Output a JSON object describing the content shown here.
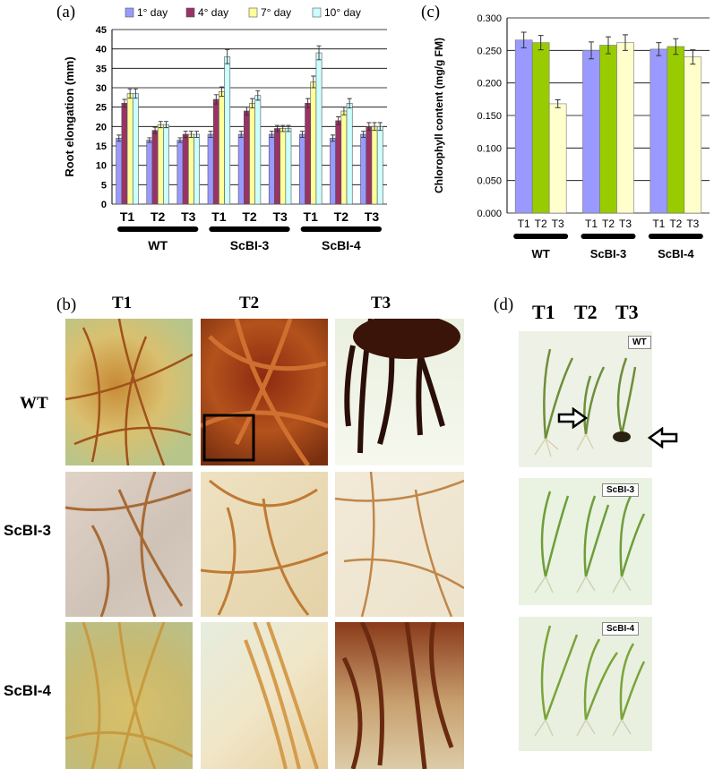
{
  "panels": {
    "a": "(a)",
    "b": "(b)",
    "c": "(c)",
    "d": "(d)"
  },
  "colors": {
    "day1": "#9999ff",
    "day4": "#993366",
    "day7": "#ffff99",
    "day10": "#ccffff",
    "c_T1": "#9999ff",
    "c_T2": "#99cc00",
    "c_T3": "#ffffcc"
  },
  "chart_data": [
    {
      "type": "bar",
      "panel": "a",
      "ylabel": "Root elongation (mm)",
      "ylim": [
        0,
        45
      ],
      "yticks": [
        "0",
        "5",
        "10",
        "15",
        "20",
        "25",
        "30",
        "35",
        "40",
        "45"
      ],
      "grid": true,
      "legend_position": "top",
      "categories": [
        "T1",
        "T2",
        "T3",
        "T1",
        "T2",
        "T3",
        "T1",
        "T2",
        "T3"
      ],
      "groups": [
        "WT",
        "ScBI-3",
        "ScBI-4"
      ],
      "series": [
        {
          "name": "1° day",
          "values": [
            17,
            16.5,
            16.5,
            18,
            18,
            18,
            18,
            17,
            18
          ]
        },
        {
          "name": "4° day",
          "values": [
            26,
            19,
            18,
            27,
            24,
            19.5,
            26,
            21.5,
            20
          ]
        },
        {
          "name": "7° day",
          "values": [
            28.5,
            20.5,
            18,
            29,
            26,
            19.5,
            31.5,
            24,
            20
          ]
        },
        {
          "name": "10° day",
          "values": [
            28.5,
            20.5,
            18,
            38,
            28,
            19.5,
            39,
            26,
            20
          ]
        }
      ],
      "errors": [
        [
          0.8,
          0.6,
          0.6,
          0.8,
          0.8,
          0.8,
          0.8,
          0.8,
          0.8
        ],
        [
          1.0,
          0.8,
          0.8,
          1.2,
          1.0,
          0.8,
          1.2,
          1.0,
          1.0
        ],
        [
          1.2,
          0.8,
          0.8,
          1.2,
          1.2,
          0.8,
          1.5,
          1.0,
          1.0
        ],
        [
          1.2,
          0.8,
          0.8,
          1.8,
          1.2,
          0.8,
          1.8,
          1.2,
          1.0
        ]
      ]
    },
    {
      "type": "bar",
      "panel": "c",
      "ylabel": "Chlorophyll content (mg/g FM)",
      "ylim": [
        0,
        0.3
      ],
      "yticks": [
        "0.000",
        "0.050",
        "0.100",
        "0.150",
        "0.200",
        "0.250",
        "0.300"
      ],
      "grid": true,
      "categories": [
        "T1",
        "T2",
        "T3"
      ],
      "groups": [
        "WT",
        "ScBI-3",
        "ScBI-4"
      ],
      "series": [
        {
          "values": [
            0.266,
            0.25,
            0.252
          ]
        },
        {
          "values": [
            0.262,
            0.258,
            0.256
          ]
        },
        {
          "values": [
            0.168,
            0.262,
            0.24
          ]
        }
      ],
      "errors": [
        [
          0.012,
          0.013,
          0.01
        ],
        [
          0.011,
          0.013,
          0.012
        ],
        [
          0.006,
          0.012,
          0.011
        ]
      ]
    }
  ],
  "figure_b": {
    "columns": [
      "T1",
      "T2",
      "T3"
    ],
    "rows": [
      "WT",
      "ScBI-3",
      "ScBI-4"
    ]
  },
  "figure_d": {
    "columns": [
      "T1",
      "T2",
      "T3"
    ],
    "tags": [
      "WT",
      "ScBI-3",
      "ScBI-4"
    ]
  }
}
